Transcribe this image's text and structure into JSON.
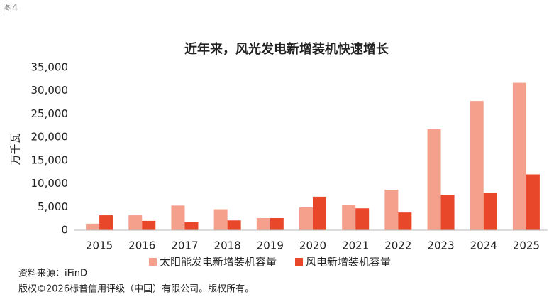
{
  "figure_label": "图4",
  "chart_data": {
    "type": "bar",
    "title": "近年来，风光发电新增装机快速增长",
    "y_label": "万千瓦",
    "categories": [
      "2015",
      "2016",
      "2017",
      "2018",
      "2019",
      "2020",
      "2021",
      "2022",
      "2023",
      "2024",
      "2025"
    ],
    "series": [
      {
        "name": "太阳能发电新增装机容量",
        "color": "#f4a08c",
        "values": [
          1400,
          3200,
          5300,
          4500,
          2600,
          4900,
          5500,
          8700,
          21700,
          27800,
          31700
        ]
      },
      {
        "name": "风电新增装机容量",
        "color": "#e8472a",
        "values": [
          3200,
          2000,
          1700,
          2100,
          2600,
          7200,
          4700,
          3800,
          7600,
          8000,
          12000
        ]
      }
    ],
    "ylim": [
      0,
      35000
    ],
    "yticks": [
      0,
      {
        "value": 5000,
        "label": "5,000"
      },
      {
        "value": 10000,
        "label": "10,000"
      },
      {
        "value": 15000,
        "label": "15,000"
      },
      {
        "value": 20000,
        "label": "20,000"
      },
      {
        "value": 25000,
        "label": "25,000"
      },
      {
        "value": 30000,
        "label": "30,000"
      },
      {
        "value": 35000,
        "label": "35,000"
      }
    ],
    "grid": false
  },
  "source": "资料来源：iFinD",
  "copyright": "版权©2026标普信用评级（中国）有限公司。版权所有。"
}
